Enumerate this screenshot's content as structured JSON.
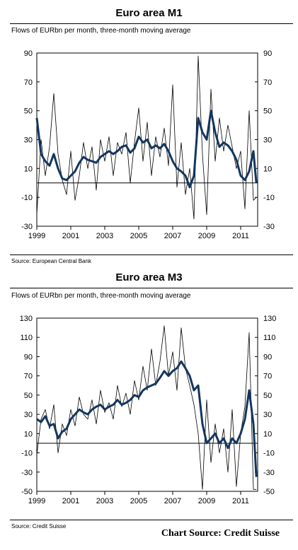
{
  "panels": [
    {
      "title": "Euro area M1",
      "subtitle": "Flows of EURbn per month, three-month moving average",
      "source": "Source: European Central Bank"
    },
    {
      "title": "Euro area M3",
      "subtitle": "Flows of EURbn per month, three-month moving average",
      "source": "Source: Credit Suisse"
    }
  ],
  "footer": {
    "credit": "Chart Source: Credit Suisse"
  },
  "colors": {
    "monthly": "#000000",
    "moving_average": "#14365e",
    "zero_line": "#000000"
  },
  "chart_data": [
    {
      "type": "line",
      "title": "Euro area M1",
      "ylim": [
        -30,
        90
      ],
      "yticks": [
        -30,
        -10,
        10,
        30,
        50,
        70,
        90
      ],
      "xlim": [
        1999,
        2012
      ],
      "xticks": [
        "1999",
        "2001",
        "2003",
        "2005",
        "2007",
        "2009",
        "2011"
      ],
      "grid": false,
      "series": [
        {
          "style": "thin",
          "x": [
            1999.0,
            1999.25,
            1999.5,
            1999.75,
            2000.0,
            2000.25,
            2000.5,
            2000.75,
            2001.0,
            2001.25,
            2001.5,
            2001.75,
            2002.0,
            2002.25,
            2002.5,
            2002.75,
            2003.0,
            2003.25,
            2003.5,
            2003.75,
            2004.0,
            2004.25,
            2004.5,
            2004.75,
            2005.0,
            2005.25,
            2005.5,
            2005.75,
            2006.0,
            2006.25,
            2006.5,
            2006.75,
            2007.0,
            2007.25,
            2007.5,
            2007.75,
            2008.0,
            2008.25,
            2008.5,
            2008.75,
            2009.0,
            2009.25,
            2009.5,
            2009.75,
            2010.0,
            2010.25,
            2010.5,
            2010.75,
            2011.0,
            2011.25,
            2011.5,
            2011.75,
            2011.92
          ],
          "values": [
            -22,
            30,
            5,
            25,
            62,
            20,
            2,
            -8,
            22,
            -12,
            5,
            28,
            10,
            25,
            -5,
            30,
            15,
            32,
            5,
            28,
            20,
            35,
            0,
            28,
            52,
            15,
            42,
            5,
            32,
            18,
            38,
            12,
            68,
            -3,
            28,
            -8,
            10,
            -25,
            88,
            20,
            -22,
            65,
            15,
            45,
            22,
            40,
            25,
            10,
            22,
            -18,
            50,
            -12,
            -10
          ]
        },
        {
          "style": "thick",
          "x": [
            1999.0,
            1999.25,
            1999.5,
            1999.75,
            2000.0,
            2000.25,
            2000.5,
            2000.75,
            2001.0,
            2001.25,
            2001.5,
            2001.75,
            2002.0,
            2002.25,
            2002.5,
            2002.75,
            2003.0,
            2003.25,
            2003.5,
            2003.75,
            2004.0,
            2004.25,
            2004.5,
            2004.75,
            2005.0,
            2005.25,
            2005.5,
            2005.75,
            2006.0,
            2006.25,
            2006.5,
            2006.75,
            2007.0,
            2007.25,
            2007.5,
            2007.75,
            2008.0,
            2008.25,
            2008.5,
            2008.75,
            2009.0,
            2009.25,
            2009.5,
            2009.75,
            2010.0,
            2010.25,
            2010.5,
            2010.75,
            2011.0,
            2011.25,
            2011.5,
            2011.75,
            2011.92
          ],
          "values": [
            45,
            20,
            15,
            12,
            20,
            10,
            3,
            2,
            5,
            8,
            14,
            18,
            16,
            15,
            14,
            18,
            20,
            22,
            20,
            22,
            25,
            26,
            21,
            24,
            32,
            28,
            30,
            24,
            26,
            24,
            27,
            22,
            15,
            10,
            8,
            5,
            -3,
            5,
            45,
            35,
            30,
            50,
            35,
            25,
            28,
            26,
            22,
            16,
            5,
            2,
            8,
            22,
            0
          ]
        }
      ]
    },
    {
      "type": "line",
      "title": "Euro area M3",
      "ylim": [
        -50,
        130
      ],
      "yticks": [
        -50,
        -30,
        -10,
        10,
        30,
        50,
        70,
        90,
        110,
        130
      ],
      "xlim": [
        1999,
        2012
      ],
      "xticks": [
        "1999",
        "2001",
        "2003",
        "2005",
        "2007",
        "2009",
        "2011"
      ],
      "grid": false,
      "series": [
        {
          "style": "thin",
          "x": [
            1999.0,
            1999.25,
            1999.5,
            1999.75,
            2000.0,
            2000.25,
            2000.5,
            2000.75,
            2001.0,
            2001.25,
            2001.5,
            2001.75,
            2002.0,
            2002.25,
            2002.5,
            2002.75,
            2003.0,
            2003.25,
            2003.5,
            2003.75,
            2004.0,
            2004.25,
            2004.5,
            2004.75,
            2005.0,
            2005.25,
            2005.5,
            2005.75,
            2006.0,
            2006.25,
            2006.5,
            2006.75,
            2007.0,
            2007.25,
            2007.5,
            2007.75,
            2008.0,
            2008.25,
            2008.5,
            2008.75,
            2009.0,
            2009.25,
            2009.5,
            2009.75,
            2010.0,
            2010.25,
            2010.5,
            2010.75,
            2011.0,
            2011.25,
            2011.5,
            2011.75,
            2011.92
          ],
          "values": [
            -12,
            25,
            35,
            15,
            40,
            -10,
            20,
            8,
            35,
            18,
            48,
            30,
            25,
            45,
            20,
            55,
            32,
            42,
            25,
            60,
            38,
            52,
            30,
            65,
            45,
            80,
            55,
            98,
            60,
            85,
            122,
            70,
            95,
            55,
            120,
            78,
            60,
            40,
            10,
            -48,
            45,
            -20,
            20,
            -10,
            15,
            -30,
            35,
            -45,
            10,
            38,
            115,
            -48,
            -48
          ]
        },
        {
          "style": "thick",
          "x": [
            1999.0,
            1999.25,
            1999.5,
            1999.75,
            2000.0,
            2000.25,
            2000.5,
            2000.75,
            2001.0,
            2001.25,
            2001.5,
            2001.75,
            2002.0,
            2002.25,
            2002.5,
            2002.75,
            2003.0,
            2003.25,
            2003.5,
            2003.75,
            2004.0,
            2004.25,
            2004.5,
            2004.75,
            2005.0,
            2005.25,
            2005.5,
            2005.75,
            2006.0,
            2006.25,
            2006.5,
            2006.75,
            2007.0,
            2007.25,
            2007.5,
            2007.75,
            2008.0,
            2008.25,
            2008.5,
            2008.75,
            2009.0,
            2009.25,
            2009.5,
            2009.75,
            2010.0,
            2010.25,
            2010.5,
            2010.75,
            2011.0,
            2011.25,
            2011.5,
            2011.75,
            2011.92
          ],
          "values": [
            25,
            22,
            28,
            18,
            20,
            5,
            12,
            15,
            25,
            30,
            35,
            32,
            30,
            35,
            38,
            40,
            35,
            38,
            40,
            45,
            40,
            42,
            45,
            50,
            48,
            55,
            58,
            60,
            62,
            68,
            75,
            70,
            75,
            78,
            85,
            78,
            70,
            55,
            60,
            20,
            0,
            5,
            10,
            0,
            5,
            -5,
            5,
            0,
            10,
            25,
            55,
            20,
            -35
          ]
        }
      ]
    }
  ]
}
